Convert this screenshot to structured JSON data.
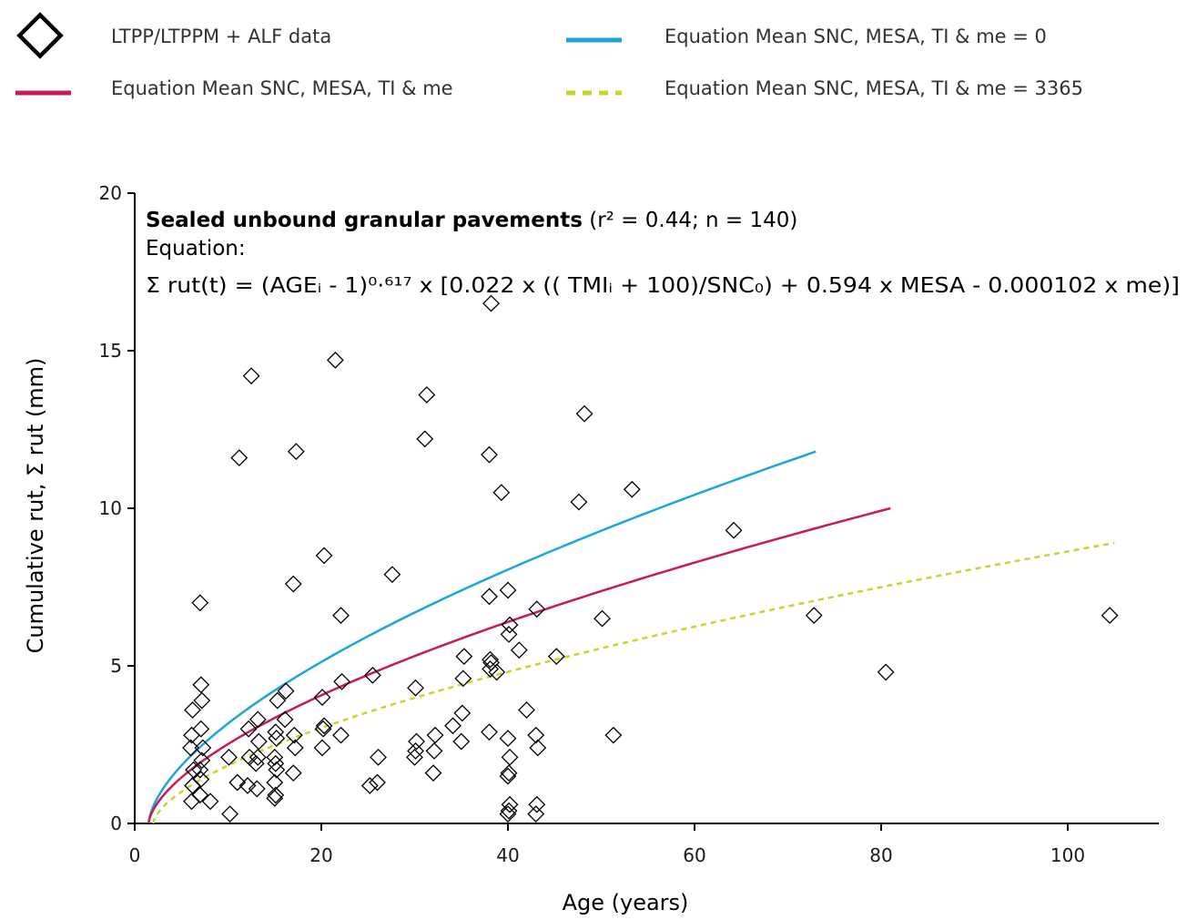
{
  "chart_data": {
    "type": "scatter",
    "xlabel": "Age (years)",
    "ylabel": "Cumulative rut, Σ rut (mm)",
    "xlim": [
      0,
      110
    ],
    "ylim": [
      0,
      20
    ],
    "x_ticks": [
      0,
      20,
      40,
      60,
      80,
      100
    ],
    "y_ticks": [
      0,
      5,
      10,
      15,
      20
    ],
    "grid": false,
    "legend_position": "top",
    "legend": [
      {
        "key": "points",
        "label": "LTPP/LTPPM + ALF data",
        "style": "diamond",
        "color": "#000000"
      },
      {
        "key": "me0",
        "label": "Equation Mean SNC, MESA, TI & me = 0",
        "style": "solid",
        "color": "#1aa6dc"
      },
      {
        "key": "mean",
        "label": "Equation Mean SNC, MESA, TI & me",
        "style": "solid",
        "color": "#c8195a"
      },
      {
        "key": "me3365",
        "label": "Equation Mean SNC, MESA, TI & me = 3365",
        "style": "dashed",
        "color": "#c8d42a"
      }
    ],
    "annotation": {
      "title_bold": "Sealed unbound granular pavements",
      "title_rest": " (r² = 0.44; n = 140)",
      "equation_label": "Equation:",
      "equation": "Σ     rut(t) = (AGEᵢ - 1)⁰·⁶¹⁷ x [0.022 x (( TMIᵢ + 100)/SNC₀) + 0.594 x MESA - 0.000102 x me)]"
    },
    "curves": [
      {
        "key": "me0",
        "color": "#1aa6dc",
        "dashed": false,
        "x_start": 1.5,
        "x_end": 73,
        "y_end": 11.8,
        "exponent": 0.617
      },
      {
        "key": "mean",
        "color": "#c8195a",
        "dashed": false,
        "x_start": 1.5,
        "x_end": 81,
        "y_end": 10.0,
        "exponent": 0.617
      },
      {
        "key": "me3365",
        "color": "#c8d42a",
        "dashed": true,
        "x_start": 2.0,
        "x_end": 105,
        "y_end": 8.9,
        "exponent": 0.617
      }
    ],
    "points": [
      [
        6.1,
        0.7
      ],
      [
        6.2,
        1.2
      ],
      [
        6.3,
        1.7
      ],
      [
        6.0,
        2.4
      ],
      [
        6.1,
        2.8
      ],
      [
        6.2,
        3.6
      ],
      [
        7.0,
        0.9
      ],
      [
        7.1,
        1.4
      ],
      [
        7.0,
        1.7
      ],
      [
        7.2,
        2.0
      ],
      [
        7.3,
        2.4
      ],
      [
        7.1,
        3.0
      ],
      [
        7.2,
        3.9
      ],
      [
        7.1,
        4.4
      ],
      [
        7.0,
        7.0
      ],
      [
        8.1,
        0.7
      ],
      [
        10.2,
        0.3
      ],
      [
        10.1,
        2.1
      ],
      [
        11.0,
        1.3
      ],
      [
        11.2,
        11.6
      ],
      [
        12.1,
        1.2
      ],
      [
        12.3,
        2.1
      ],
      [
        12.2,
        3.0
      ],
      [
        12.5,
        14.2
      ],
      [
        13.1,
        1.1
      ],
      [
        13.0,
        1.9
      ],
      [
        13.2,
        2.1
      ],
      [
        13.3,
        2.6
      ],
      [
        13.2,
        3.3
      ],
      [
        15.0,
        0.8
      ],
      [
        15.1,
        0.9
      ],
      [
        15.0,
        1.3
      ],
      [
        15.2,
        1.7
      ],
      [
        15.1,
        1.9
      ],
      [
        15.0,
        2.1
      ],
      [
        15.2,
        2.7
      ],
      [
        15.1,
        2.9
      ],
      [
        15.3,
        3.9
      ],
      [
        16.1,
        3.3
      ],
      [
        16.2,
        4.2
      ],
      [
        17.0,
        1.6
      ],
      [
        17.2,
        2.4
      ],
      [
        17.1,
        2.8
      ],
      [
        17.0,
        7.6
      ],
      [
        17.3,
        11.8
      ],
      [
        20.1,
        2.4
      ],
      [
        20.2,
        3.0
      ],
      [
        20.3,
        3.1
      ],
      [
        20.1,
        4.0
      ],
      [
        20.3,
        8.5
      ],
      [
        21.5,
        14.7
      ],
      [
        22.1,
        2.8
      ],
      [
        22.2,
        4.5
      ],
      [
        22.1,
        6.6
      ],
      [
        25.2,
        1.2
      ],
      [
        25.5,
        4.7
      ],
      [
        26.0,
        1.3
      ],
      [
        26.1,
        2.1
      ],
      [
        27.6,
        7.9
      ],
      [
        30.0,
        2.1
      ],
      [
        30.1,
        2.3
      ],
      [
        30.2,
        2.6
      ],
      [
        30.1,
        4.3
      ],
      [
        31.1,
        12.2
      ],
      [
        31.3,
        13.6
      ],
      [
        32.0,
        1.6
      ],
      [
        32.1,
        2.3
      ],
      [
        32.2,
        2.8
      ],
      [
        34.1,
        3.1
      ],
      [
        35.0,
        2.6
      ],
      [
        35.1,
        3.5
      ],
      [
        35.2,
        4.6
      ],
      [
        35.3,
        5.3
      ],
      [
        38.0,
        2.9
      ],
      [
        38.1,
        4.9
      ],
      [
        38.2,
        5.1
      ],
      [
        38.1,
        5.2
      ],
      [
        38.0,
        7.2
      ],
      [
        38.0,
        11.7
      ],
      [
        38.2,
        16.5
      ],
      [
        38.8,
        4.8
      ],
      [
        39.3,
        10.5
      ],
      [
        40.0,
        0.3
      ],
      [
        40.1,
        0.4
      ],
      [
        40.2,
        0.6
      ],
      [
        40.0,
        1.5
      ],
      [
        40.1,
        1.6
      ],
      [
        40.2,
        2.1
      ],
      [
        40.0,
        2.7
      ],
      [
        40.1,
        6.0
      ],
      [
        40.2,
        6.3
      ],
      [
        40.0,
        7.4
      ],
      [
        41.2,
        5.5
      ],
      [
        42.0,
        3.6
      ],
      [
        43.0,
        0.3
      ],
      [
        43.1,
        0.6
      ],
      [
        43.2,
        2.4
      ],
      [
        43.0,
        2.8
      ],
      [
        43.1,
        6.8
      ],
      [
        45.2,
        5.3
      ],
      [
        47.6,
        10.2
      ],
      [
        48.2,
        13.0
      ],
      [
        50.1,
        6.5
      ],
      [
        51.3,
        2.8
      ],
      [
        53.3,
        10.6
      ],
      [
        64.2,
        9.3
      ],
      [
        72.8,
        6.6
      ],
      [
        80.5,
        4.8
      ],
      [
        104.5,
        6.6
      ]
    ]
  }
}
